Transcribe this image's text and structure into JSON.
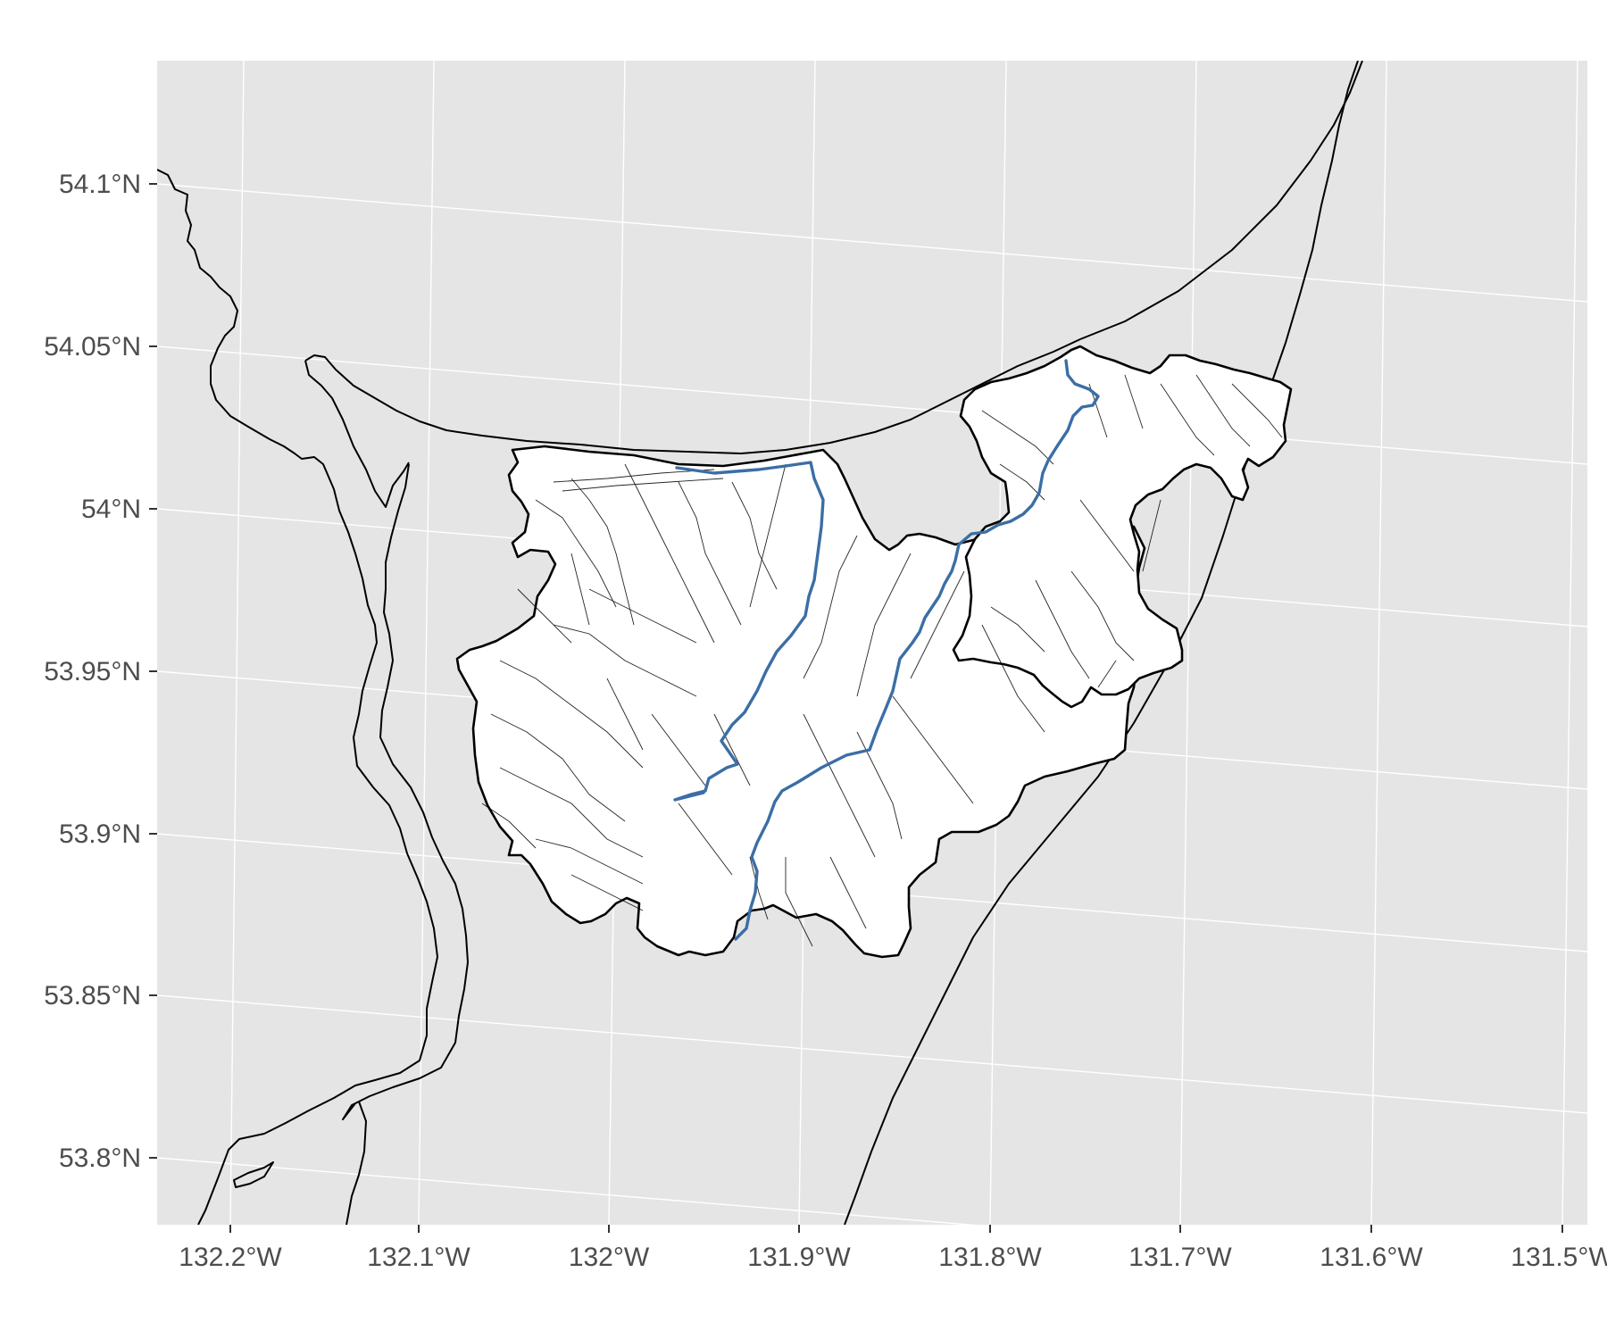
{
  "map": {
    "panel_background": "#e5e5e5",
    "grid_color": "#ffffff",
    "coast_color": "#000000",
    "watershed_fill": "#ffffff",
    "main_river_color": "#3b6ea5",
    "x_axis_labels": [
      "132.2°W",
      "132.1°W",
      "132°W",
      "131.9°W",
      "131.8°W",
      "131.7°W",
      "131.6°W",
      "131.5°W"
    ],
    "y_axis_labels": [
      "54.1°N",
      "54.05°N",
      "54°N",
      "53.95°N",
      "53.9°N",
      "53.85°N",
      "53.8°N"
    ]
  }
}
